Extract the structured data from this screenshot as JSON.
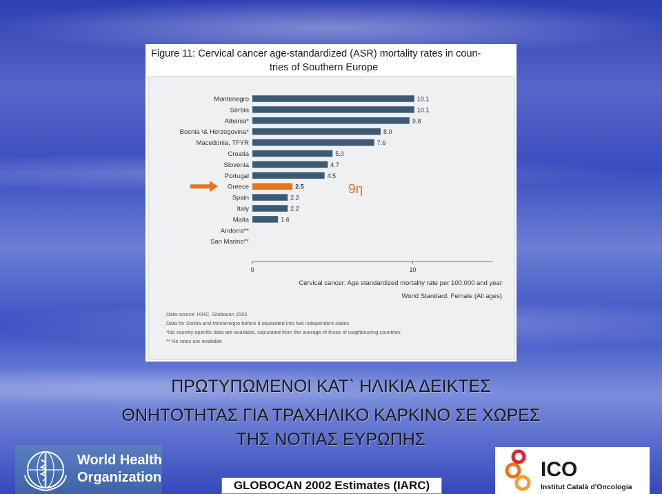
{
  "figure": {
    "title_line1": "Figure 11: Cervical cancer age-standardized (ASR) mortality rates in coun-",
    "title_line2": "tries of Southern Europe",
    "notes": [
      "Data source: IARC, Globocan 2002",
      "Data for Serbia and Montenegro before it separated into two independent states",
      "*No country-specific data are available, calculated from the average of those of neighbouring countries",
      "** No rates are available"
    ]
  },
  "chart_data": {
    "type": "bar",
    "orientation": "horizontal",
    "categories": [
      "Montenegro",
      "Serbia",
      "Albania*",
      "Bosnia \\& Herzegovina*",
      "Macedonia, TFYR",
      "Croatia",
      "Slovenia",
      "Portugal",
      "Greece",
      "Spain",
      "Italy",
      "Malta",
      "Andorra**",
      "San Marino**"
    ],
    "values": [
      10.1,
      10.1,
      9.8,
      8.0,
      7.6,
      5.0,
      4.7,
      4.5,
      2.5,
      2.2,
      2.2,
      1.6,
      null,
      null
    ],
    "value_labels": [
      "10.1",
      "10.1",
      "9.8",
      "8.0",
      "7.6",
      "5.0",
      "4.7",
      "4.5",
      "2.5",
      "2.2",
      "2.2",
      "1.6",
      "",
      ""
    ],
    "highlight_category": "Greece",
    "bar_color": "#3d5a73",
    "highlight_color": "#e8741e",
    "xlim": [
      0,
      15
    ],
    "xticks": [
      "0",
      "10"
    ],
    "xlabel_line1": "Cervical cancer: Age standardized mortality rate per 100,000 and year",
    "xlabel_line2": "World Standard. Female (All ages)",
    "annotation": "9η"
  },
  "headline": {
    "line1": "ΠΡΩΤΥΠΩΜΕΝΟΙ ΚΑΤ` ΗΛΙΚΙΑ ΔΕΙΚΤΕΣ",
    "line2": "ΘΝΗΤΟΤΗΤΑΣ ΓΙΑ ΤΡΑΧΗΛΙΚΟ ΚΑΡΚΙΝΟ ΣΕ ΧΩΡΕΣ",
    "line3": "ΤΗΣ ΝΟΤΙΑΣ ΕΥΡΩΠΗΣ"
  },
  "logos": {
    "who_line1": "World Health",
    "who_line2": "Organization",
    "ico_name": "ICO",
    "ico_sub": "Institut Català d'Oncologia"
  },
  "source": "GLOBOCAN 2002 Estimates (IARC)"
}
